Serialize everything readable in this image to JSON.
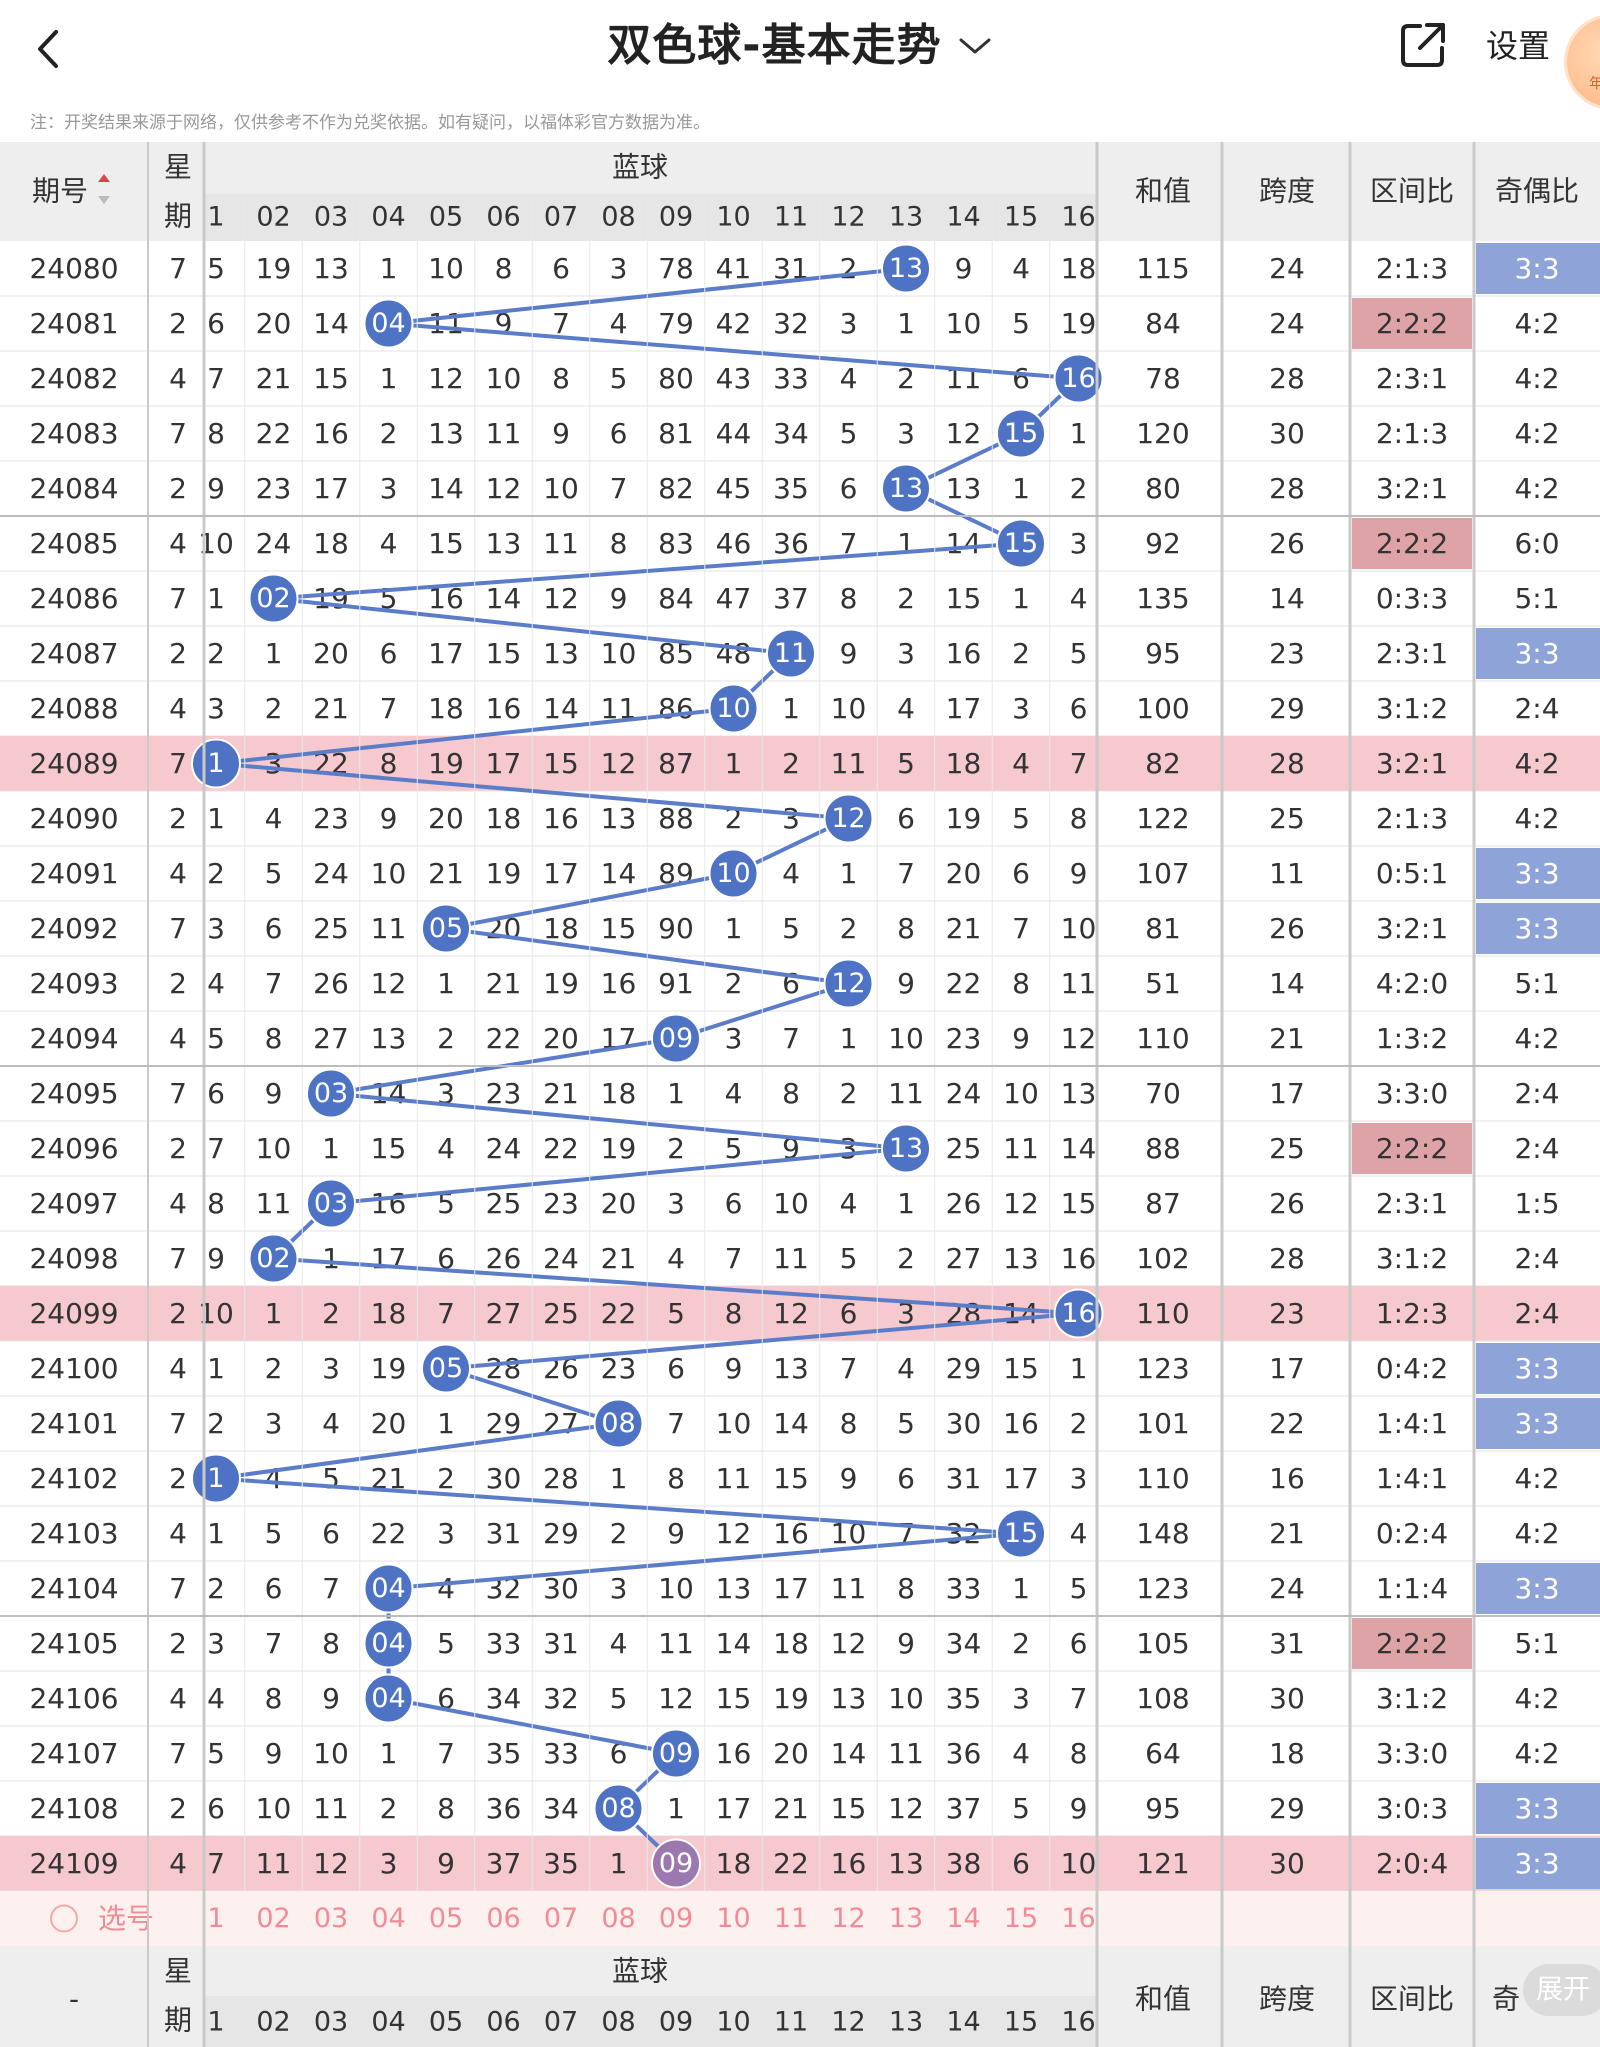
{
  "header": {
    "title": "双色球-基本走势",
    "settings_label": "设置",
    "badge_text": "年"
  },
  "notice": "注：开奖结果来源于网络，仅供参考不作为兑奖依据。如有疑问，以福体彩官方数据为准。",
  "table": {
    "headers": {
      "issue": "期号",
      "weekday_top": "星",
      "weekday_bottom": "期",
      "blue_ball": "蓝球",
      "sum": "和值",
      "span": "跨度",
      "zone_ratio": "区间比",
      "odd_even_ratio": "奇偶比"
    },
    "ball_columns": [
      "1",
      "02",
      "03",
      "04",
      "05",
      "06",
      "07",
      "08",
      "09",
      "10",
      "11",
      "12",
      "13",
      "14",
      "15",
      "16"
    ],
    "rows": [
      {
        "issue": "24080",
        "week": "7",
        "cells": [
          "5",
          "19",
          "13",
          "1",
          "10",
          "8",
          "6",
          "3",
          "78",
          "41",
          "31",
          "2",
          "13",
          "9",
          "4",
          "18"
        ],
        "hit": 13,
        "sum": "115",
        "span": "24",
        "zone": "2:1:3",
        "oe": "3:3"
      },
      {
        "issue": "24081",
        "week": "2",
        "cells": [
          "6",
          "20",
          "14",
          "04",
          "11",
          "9",
          "7",
          "4",
          "79",
          "42",
          "32",
          "3",
          "1",
          "10",
          "5",
          "19"
        ],
        "hit": 4,
        "sum": "84",
        "span": "24",
        "zone": "2:2:2",
        "oe": "4:2"
      },
      {
        "issue": "24082",
        "week": "4",
        "cells": [
          "7",
          "21",
          "15",
          "1",
          "12",
          "10",
          "8",
          "5",
          "80",
          "43",
          "33",
          "4",
          "2",
          "11",
          "6",
          "16"
        ],
        "hit": 16,
        "sum": "78",
        "span": "28",
        "zone": "2:3:1",
        "oe": "4:2"
      },
      {
        "issue": "24083",
        "week": "7",
        "cells": [
          "8",
          "22",
          "16",
          "2",
          "13",
          "11",
          "9",
          "6",
          "81",
          "44",
          "34",
          "5",
          "3",
          "12",
          "15",
          "1"
        ],
        "hit": 15,
        "sum": "120",
        "span": "30",
        "zone": "2:1:3",
        "oe": "4:2"
      },
      {
        "issue": "24084",
        "week": "2",
        "cells": [
          "9",
          "23",
          "17",
          "3",
          "14",
          "12",
          "10",
          "7",
          "82",
          "45",
          "35",
          "6",
          "13",
          "13",
          "1",
          "2"
        ],
        "hit": 13,
        "sum": "80",
        "span": "28",
        "zone": "3:2:1",
        "oe": "4:2"
      },
      {
        "issue": "24085",
        "week": "4",
        "cells": [
          "10",
          "24",
          "18",
          "4",
          "15",
          "13",
          "11",
          "8",
          "83",
          "46",
          "36",
          "7",
          "1",
          "14",
          "15",
          "3"
        ],
        "hit": 15,
        "sum": "92",
        "span": "26",
        "zone": "2:2:2",
        "oe": "6:0"
      },
      {
        "issue": "24086",
        "week": "7",
        "cells": [
          "1",
          "02",
          "19",
          "5",
          "16",
          "14",
          "12",
          "9",
          "84",
          "47",
          "37",
          "8",
          "2",
          "15",
          "1",
          "4"
        ],
        "hit": 2,
        "sum": "135",
        "span": "14",
        "zone": "0:3:3",
        "oe": "5:1"
      },
      {
        "issue": "24087",
        "week": "2",
        "cells": [
          "2",
          "1",
          "20",
          "6",
          "17",
          "15",
          "13",
          "10",
          "85",
          "48",
          "11",
          "9",
          "3",
          "16",
          "2",
          "5"
        ],
        "hit": 11,
        "sum": "95",
        "span": "23",
        "zone": "2:3:1",
        "oe": "3:3"
      },
      {
        "issue": "24088",
        "week": "4",
        "cells": [
          "3",
          "2",
          "21",
          "7",
          "18",
          "16",
          "14",
          "11",
          "86",
          "10",
          "1",
          "10",
          "4",
          "17",
          "3",
          "6"
        ],
        "hit": 10,
        "sum": "100",
        "span": "29",
        "zone": "3:1:2",
        "oe": "2:4"
      },
      {
        "issue": "24089",
        "week": "7",
        "cells": [
          "1",
          "3",
          "22",
          "8",
          "19",
          "17",
          "15",
          "12",
          "87",
          "1",
          "2",
          "11",
          "5",
          "18",
          "4",
          "7"
        ],
        "hit": 1,
        "sum": "82",
        "span": "28",
        "zone": "3:2:1",
        "oe": "4:2"
      },
      {
        "issue": "24090",
        "week": "2",
        "cells": [
          "1",
          "4",
          "23",
          "9",
          "20",
          "18",
          "16",
          "13",
          "88",
          "2",
          "3",
          "12",
          "6",
          "19",
          "5",
          "8"
        ],
        "hit": 12,
        "sum": "122",
        "span": "25",
        "zone": "2:1:3",
        "oe": "4:2"
      },
      {
        "issue": "24091",
        "week": "4",
        "cells": [
          "2",
          "5",
          "24",
          "10",
          "21",
          "19",
          "17",
          "14",
          "89",
          "10",
          "4",
          "1",
          "7",
          "20",
          "6",
          "9"
        ],
        "hit": 10,
        "sum": "107",
        "span": "11",
        "zone": "0:5:1",
        "oe": "3:3"
      },
      {
        "issue": "24092",
        "week": "7",
        "cells": [
          "3",
          "6",
          "25",
          "11",
          "05",
          "20",
          "18",
          "15",
          "90",
          "1",
          "5",
          "2",
          "8",
          "21",
          "7",
          "10"
        ],
        "hit": 5,
        "sum": "81",
        "span": "26",
        "zone": "3:2:1",
        "oe": "3:3"
      },
      {
        "issue": "24093",
        "week": "2",
        "cells": [
          "4",
          "7",
          "26",
          "12",
          "1",
          "21",
          "19",
          "16",
          "91",
          "2",
          "6",
          "12",
          "9",
          "22",
          "8",
          "11"
        ],
        "hit": 12,
        "sum": "51",
        "span": "14",
        "zone": "4:2:0",
        "oe": "5:1"
      },
      {
        "issue": "24094",
        "week": "4",
        "cells": [
          "5",
          "8",
          "27",
          "13",
          "2",
          "22",
          "20",
          "17",
          "09",
          "3",
          "7",
          "1",
          "10",
          "23",
          "9",
          "12"
        ],
        "hit": 9,
        "sum": "110",
        "span": "21",
        "zone": "1:3:2",
        "oe": "4:2"
      },
      {
        "issue": "24095",
        "week": "7",
        "cells": [
          "6",
          "9",
          "03",
          "14",
          "3",
          "23",
          "21",
          "18",
          "1",
          "4",
          "8",
          "2",
          "11",
          "24",
          "10",
          "13"
        ],
        "hit": 3,
        "sum": "70",
        "span": "17",
        "zone": "3:3:0",
        "oe": "2:4"
      },
      {
        "issue": "24096",
        "week": "2",
        "cells": [
          "7",
          "10",
          "1",
          "15",
          "4",
          "24",
          "22",
          "19",
          "2",
          "5",
          "9",
          "3",
          "13",
          "25",
          "11",
          "14"
        ],
        "hit": 13,
        "sum": "88",
        "span": "25",
        "zone": "2:2:2",
        "oe": "2:4"
      },
      {
        "issue": "24097",
        "week": "4",
        "cells": [
          "8",
          "11",
          "03",
          "16",
          "5",
          "25",
          "23",
          "20",
          "3",
          "6",
          "10",
          "4",
          "1",
          "26",
          "12",
          "15"
        ],
        "hit": 3,
        "sum": "87",
        "span": "26",
        "zone": "2:3:1",
        "oe": "1:5"
      },
      {
        "issue": "24098",
        "week": "7",
        "cells": [
          "9",
          "02",
          "1",
          "17",
          "6",
          "26",
          "24",
          "21",
          "4",
          "7",
          "11",
          "5",
          "2",
          "27",
          "13",
          "16"
        ],
        "hit": 2,
        "sum": "102",
        "span": "28",
        "zone": "3:1:2",
        "oe": "2:4"
      },
      {
        "issue": "24099",
        "week": "2",
        "cells": [
          "10",
          "1",
          "2",
          "18",
          "7",
          "27",
          "25",
          "22",
          "5",
          "8",
          "12",
          "6",
          "3",
          "28",
          "14",
          "16"
        ],
        "hit": 16,
        "sum": "110",
        "span": "23",
        "zone": "1:2:3",
        "oe": "2:4"
      },
      {
        "issue": "24100",
        "week": "4",
        "cells": [
          "1",
          "2",
          "3",
          "19",
          "05",
          "28",
          "26",
          "23",
          "6",
          "9",
          "13",
          "7",
          "4",
          "29",
          "15",
          "1"
        ],
        "hit": 5,
        "sum": "123",
        "span": "17",
        "zone": "0:4:2",
        "oe": "3:3"
      },
      {
        "issue": "24101",
        "week": "7",
        "cells": [
          "2",
          "3",
          "4",
          "20",
          "1",
          "29",
          "27",
          "08",
          "7",
          "10",
          "14",
          "8",
          "5",
          "30",
          "16",
          "2"
        ],
        "hit": 8,
        "sum": "101",
        "span": "22",
        "zone": "1:4:1",
        "oe": "3:3"
      },
      {
        "issue": "24102",
        "week": "2",
        "cells": [
          "1",
          "4",
          "5",
          "21",
          "2",
          "30",
          "28",
          "1",
          "8",
          "11",
          "15",
          "9",
          "6",
          "31",
          "17",
          "3"
        ],
        "hit": 1,
        "sum": "110",
        "span": "16",
        "zone": "1:4:1",
        "oe": "4:2"
      },
      {
        "issue": "24103",
        "week": "4",
        "cells": [
          "1",
          "5",
          "6",
          "22",
          "3",
          "31",
          "29",
          "2",
          "9",
          "12",
          "16",
          "10",
          "7",
          "32",
          "15",
          "4"
        ],
        "hit": 15,
        "sum": "148",
        "span": "21",
        "zone": "0:2:4",
        "oe": "4:2"
      },
      {
        "issue": "24104",
        "week": "7",
        "cells": [
          "2",
          "6",
          "7",
          "04",
          "4",
          "32",
          "30",
          "3",
          "10",
          "13",
          "17",
          "11",
          "8",
          "33",
          "1",
          "5"
        ],
        "hit": 4,
        "sum": "123",
        "span": "24",
        "zone": "1:1:4",
        "oe": "3:3"
      },
      {
        "issue": "24105",
        "week": "2",
        "cells": [
          "3",
          "7",
          "8",
          "04",
          "5",
          "33",
          "31",
          "4",
          "11",
          "14",
          "18",
          "12",
          "9",
          "34",
          "2",
          "6"
        ],
        "hit": 4,
        "sum": "105",
        "span": "31",
        "zone": "2:2:2",
        "oe": "5:1"
      },
      {
        "issue": "24106",
        "week": "4",
        "cells": [
          "4",
          "8",
          "9",
          "04",
          "6",
          "34",
          "32",
          "5",
          "12",
          "15",
          "19",
          "13",
          "10",
          "35",
          "3",
          "7"
        ],
        "hit": 4,
        "sum": "108",
        "span": "30",
        "zone": "3:1:2",
        "oe": "4:2"
      },
      {
        "issue": "24107",
        "week": "7",
        "cells": [
          "5",
          "9",
          "10",
          "1",
          "7",
          "35",
          "33",
          "6",
          "09",
          "16",
          "20",
          "14",
          "11",
          "36",
          "4",
          "8"
        ],
        "hit": 9,
        "sum": "64",
        "span": "18",
        "zone": "3:3:0",
        "oe": "4:2"
      },
      {
        "issue": "24108",
        "week": "2",
        "cells": [
          "6",
          "10",
          "11",
          "2",
          "8",
          "36",
          "34",
          "08",
          "1",
          "17",
          "21",
          "15",
          "12",
          "37",
          "5",
          "9"
        ],
        "hit": 8,
        "sum": "95",
        "span": "29",
        "zone": "3:0:3",
        "oe": "3:3"
      },
      {
        "issue": "24109",
        "week": "4",
        "cells": [
          "7",
          "11",
          "12",
          "3",
          "9",
          "37",
          "35",
          "1",
          "09",
          "18",
          "22",
          "16",
          "13",
          "38",
          "6",
          "10"
        ],
        "hit": 9,
        "sum": "121",
        "span": "30",
        "zone": "2:0:4",
        "oe": "3:3"
      }
    ],
    "select_label": "选号",
    "footer_issue": "-",
    "footer_oe_label": "奇",
    "expand_label": "展开"
  },
  "colors": {
    "blue_ball": "#4e73c4",
    "trend_line": "#5b7cc9",
    "highlight_row": "#f5c9cd",
    "oe_highlight": "#8ea4d8",
    "zone_highlight": "#dea3a6",
    "header_bg": "#eeeeee",
    "select_text": "#f28b96"
  }
}
